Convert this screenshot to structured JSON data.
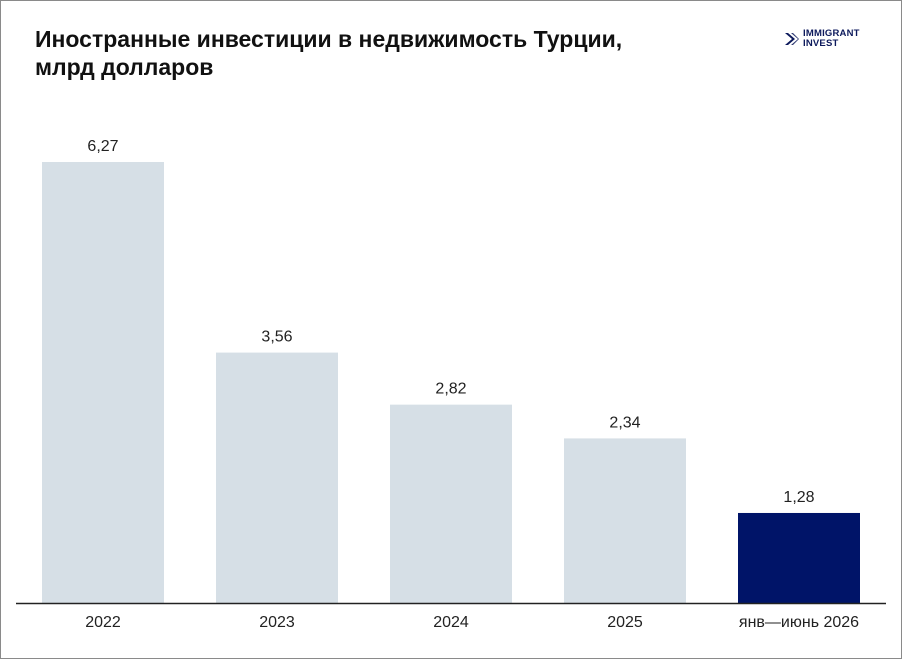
{
  "brand": {
    "line1": "IMMIGRANT",
    "line2": "INVEST",
    "color": "#0d1a5c",
    "icon": "arrow-logo-icon"
  },
  "chart_data": {
    "type": "bar",
    "title_line1": "Иностранные инвестиции в недвижимость Турции,",
    "title_line2": "млрд долларов",
    "categories": [
      "2022",
      "2023",
      "2024",
      "2025",
      "янв—июнь 2026"
    ],
    "values": [
      6.27,
      3.56,
      2.82,
      2.34,
      1.28
    ],
    "value_labels": [
      "6,27",
      "3,56",
      "2,82",
      "2,34",
      "1,28"
    ],
    "bar_colors": [
      "#d6dfe6",
      "#d6dfe6",
      "#d6dfe6",
      "#d6dfe6",
      "#001468"
    ],
    "ylim": [
      0,
      6.27
    ],
    "grid": false,
    "legend": "none"
  }
}
